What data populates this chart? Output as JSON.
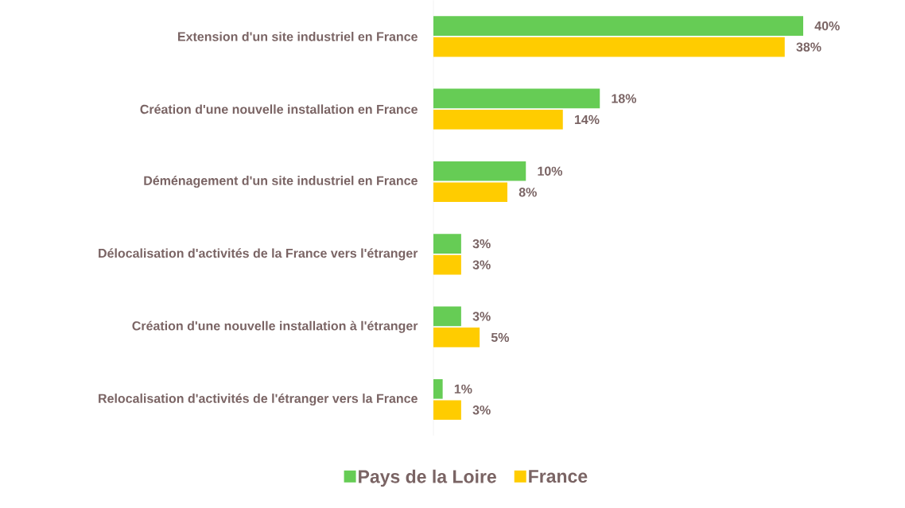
{
  "chart_data": {
    "type": "bar",
    "orientation": "horizontal",
    "categories": [
      "Extension d'un site industriel en France",
      "Création d'une nouvelle installation en France",
      "Déménagement d'un site industriel en France",
      "Délocalisation d'activités de la France vers l'étranger",
      "Création d'une nouvelle installation à l'étranger",
      "Relocalisation d'activités de l'étranger vers la France"
    ],
    "series": [
      {
        "name": "Pays de la Loire",
        "color": "#66cc55",
        "values": [
          40,
          18,
          10,
          3,
          3,
          1
        ],
        "value_labels": [
          "40%",
          "18%",
          "10%",
          "3%",
          "3%",
          "1%"
        ]
      },
      {
        "name": "France",
        "color": "#ffcc00",
        "values": [
          38,
          14,
          8,
          3,
          5,
          3
        ],
        "value_labels": [
          "38%",
          "14%",
          "8%",
          "3%",
          "5%",
          "3%"
        ]
      }
    ],
    "legend": "bottom"
  }
}
